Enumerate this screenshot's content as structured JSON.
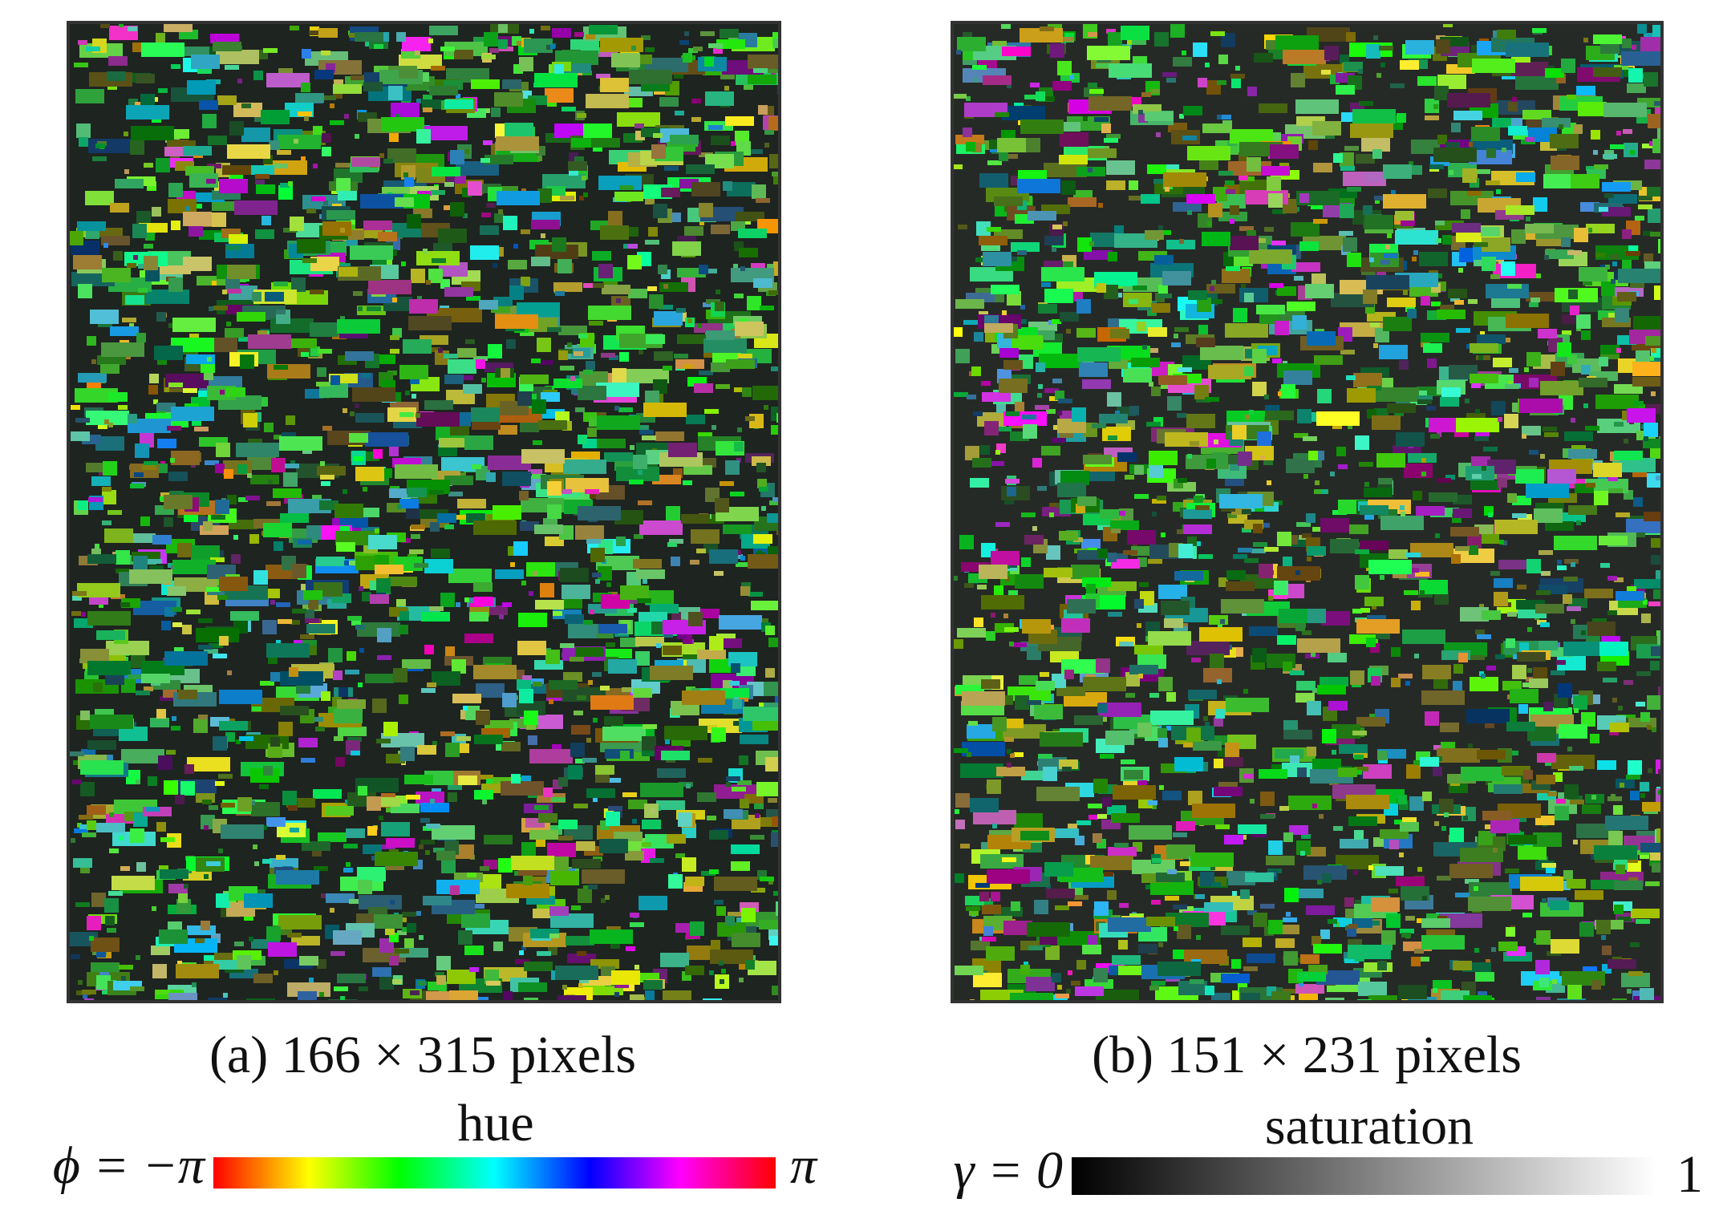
{
  "panels": [
    {
      "caption": "(a) 166 × 315 pixels"
    },
    {
      "caption": "(b) 151 × 231 pixels"
    }
  ],
  "colorbars": [
    {
      "title": "hue",
      "left_label": "ϕ = −π",
      "right_label": "π"
    },
    {
      "title": "saturation",
      "left_label": "γ = 0",
      "right_label": "1"
    }
  ]
}
